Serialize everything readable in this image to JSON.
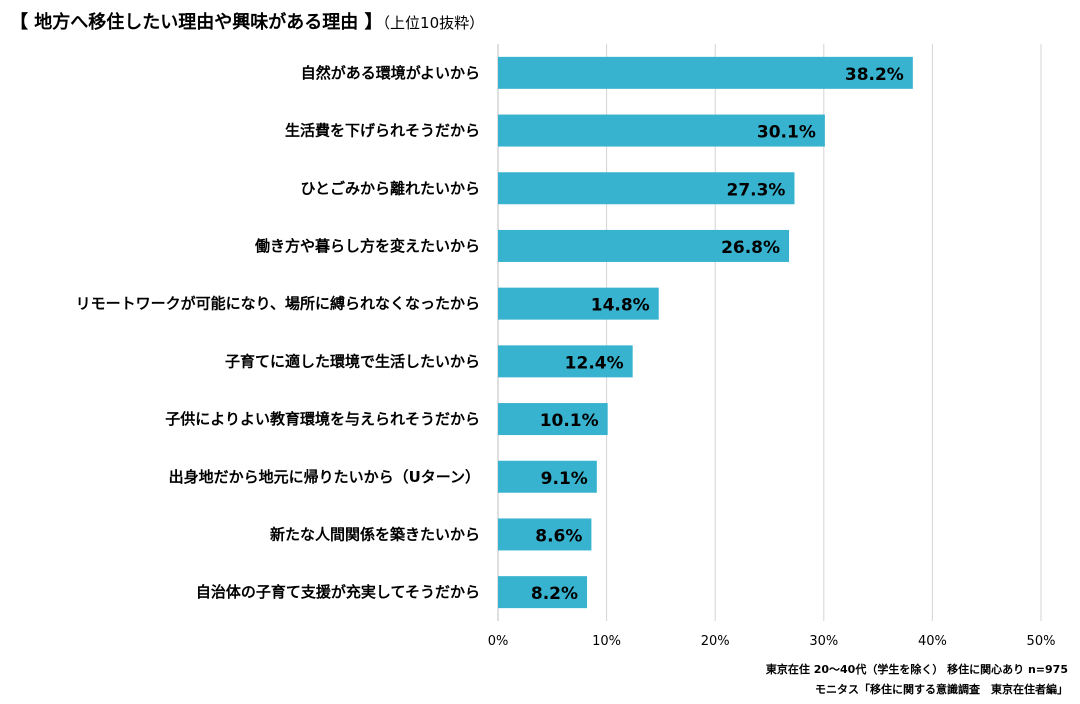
{
  "chart_data": {
    "type": "bar",
    "orientation": "horizontal",
    "title": "【 地方へ移住したい理由や興味がある理由 】",
    "subtitle": "（上位10抜粋）",
    "categories": [
      "自然がある環境がよいから",
      "生活費を下げられそうだから",
      "ひとごみから離れたいから",
      "働き方や暮らし方を変えたいから",
      "リモートワークが可能になり、場所に縛られなくなったから",
      "子育てに適した環境で生活したいから",
      "子供によりよい教育環境を与えられそうだから",
      "出身地だから地元に帰りたいから（Uターン）",
      "新たな人間関係を築きたいから",
      "自治体の子育て支援が充実してそうだから"
    ],
    "values": [
      38.2,
      30.1,
      27.3,
      26.8,
      14.8,
      12.4,
      10.1,
      9.1,
      8.6,
      8.2
    ],
    "value_labels": [
      "38.2%",
      "30.1%",
      "27.3%",
      "26.8%",
      "14.8%",
      "12.4%",
      "10.1%",
      "9.1%",
      "8.6%",
      "8.2%"
    ],
    "xlim": [
      0,
      50
    ],
    "ticks": [
      0,
      10,
      20,
      30,
      40,
      50
    ],
    "tick_labels": [
      "0%",
      "10%",
      "20%",
      "30%",
      "40%",
      "50%"
    ],
    "grid": true,
    "bar_color": "#38b3cf"
  },
  "footer": {
    "line1": "東京在住 20～40代（学生を除く） 移住に関心あり n=975",
    "line2": "モニタス「移住に関する意識調査　東京在住者編」"
  }
}
